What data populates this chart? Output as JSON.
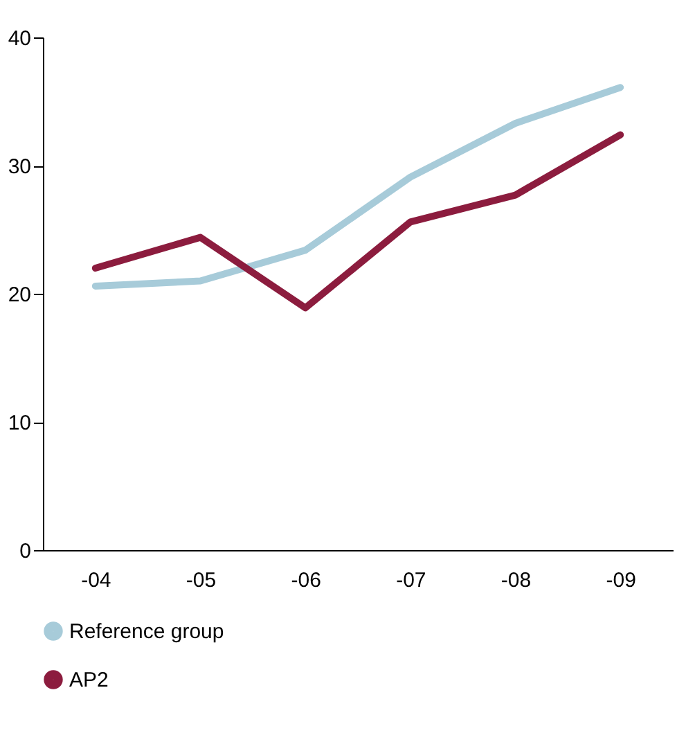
{
  "chart_data": {
    "type": "line",
    "categories": [
      "-04",
      "-05",
      "-06",
      "-07",
      "-08",
      "-09"
    ],
    "series": [
      {
        "name": "Reference group",
        "color": "#a7cbd9",
        "values": [
          20.6,
          21.0,
          23.4,
          29.1,
          33.3,
          36.1
        ]
      },
      {
        "name": "AP2",
        "color": "#8c1c3e",
        "values": [
          22.0,
          24.4,
          18.9,
          25.6,
          27.7,
          32.4
        ]
      }
    ],
    "ylim": [
      0,
      40
    ],
    "yticks": [
      0,
      10,
      20,
      30,
      40
    ],
    "grid": false,
    "legend": "bottom left",
    "marker": "none",
    "line_style": "solid"
  }
}
